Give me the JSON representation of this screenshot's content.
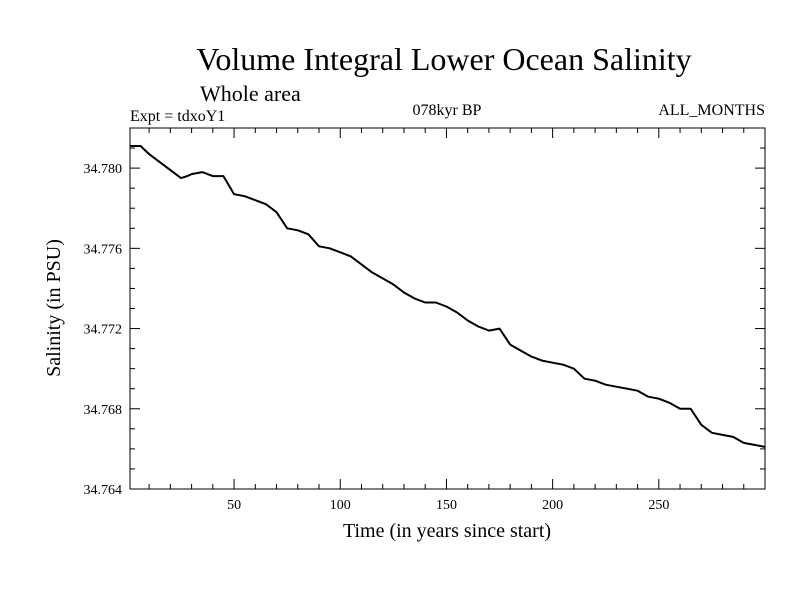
{
  "chart_data": {
    "type": "line",
    "title": "Volume Integral Lower Ocean Salinity",
    "subtitle": "Whole area",
    "experiment_label": "Expt = tdxoY1",
    "period_label": "078kyr BP",
    "months_label": "ALL_MONTHS",
    "xlabel": "Time (in years since start)",
    "ylabel": "Salinity (in PSU)",
    "xlim": [
      1,
      300
    ],
    "ylim": [
      34.764,
      34.782
    ],
    "x_ticks": [
      50,
      100,
      150,
      200,
      250
    ],
    "x_tick_labels": [
      "50",
      "100",
      "150",
      "200",
      "250"
    ],
    "y_ticks": [
      34.764,
      34.768,
      34.772,
      34.776,
      34.78
    ],
    "y_tick_labels": [
      "34.764",
      "34.768",
      "34.772",
      "34.776",
      "34.780"
    ],
    "grid": false,
    "line_color": "#000000",
    "series": [
      {
        "name": "Salinity",
        "x": [
          1,
          6,
          10,
          15,
          20,
          25,
          28,
          30,
          35,
          40,
          45,
          50,
          55,
          60,
          65,
          70,
          75,
          80,
          85,
          90,
          95,
          100,
          105,
          110,
          115,
          120,
          125,
          130,
          135,
          140,
          145,
          150,
          155,
          160,
          165,
          170,
          175,
          180,
          185,
          190,
          195,
          200,
          205,
          210,
          215,
          220,
          225,
          230,
          235,
          240,
          245,
          250,
          255,
          260,
          265,
          270,
          275,
          280,
          285,
          290,
          295,
          300
        ],
        "values": [
          34.7811,
          34.7811,
          34.7807,
          34.7803,
          34.7799,
          34.7795,
          34.7796,
          34.7797,
          34.7798,
          34.7796,
          34.7796,
          34.7787,
          34.7786,
          34.7784,
          34.7782,
          34.7778,
          34.777,
          34.7769,
          34.7767,
          34.7761,
          34.776,
          34.7758,
          34.7756,
          34.7752,
          34.7748,
          34.7745,
          34.7742,
          34.7738,
          34.7735,
          34.7733,
          34.7733,
          34.7731,
          34.7728,
          34.7724,
          34.7721,
          34.7719,
          34.772,
          34.7712,
          34.7709,
          34.7706,
          34.7704,
          34.7703,
          34.7702,
          34.77,
          34.7695,
          34.7694,
          34.7692,
          34.7691,
          34.769,
          34.7689,
          34.7686,
          34.7685,
          34.7683,
          34.768,
          34.768,
          34.7672,
          34.7668,
          34.7667,
          34.7666,
          34.7663,
          34.7662,
          34.7661
        ]
      }
    ]
  }
}
